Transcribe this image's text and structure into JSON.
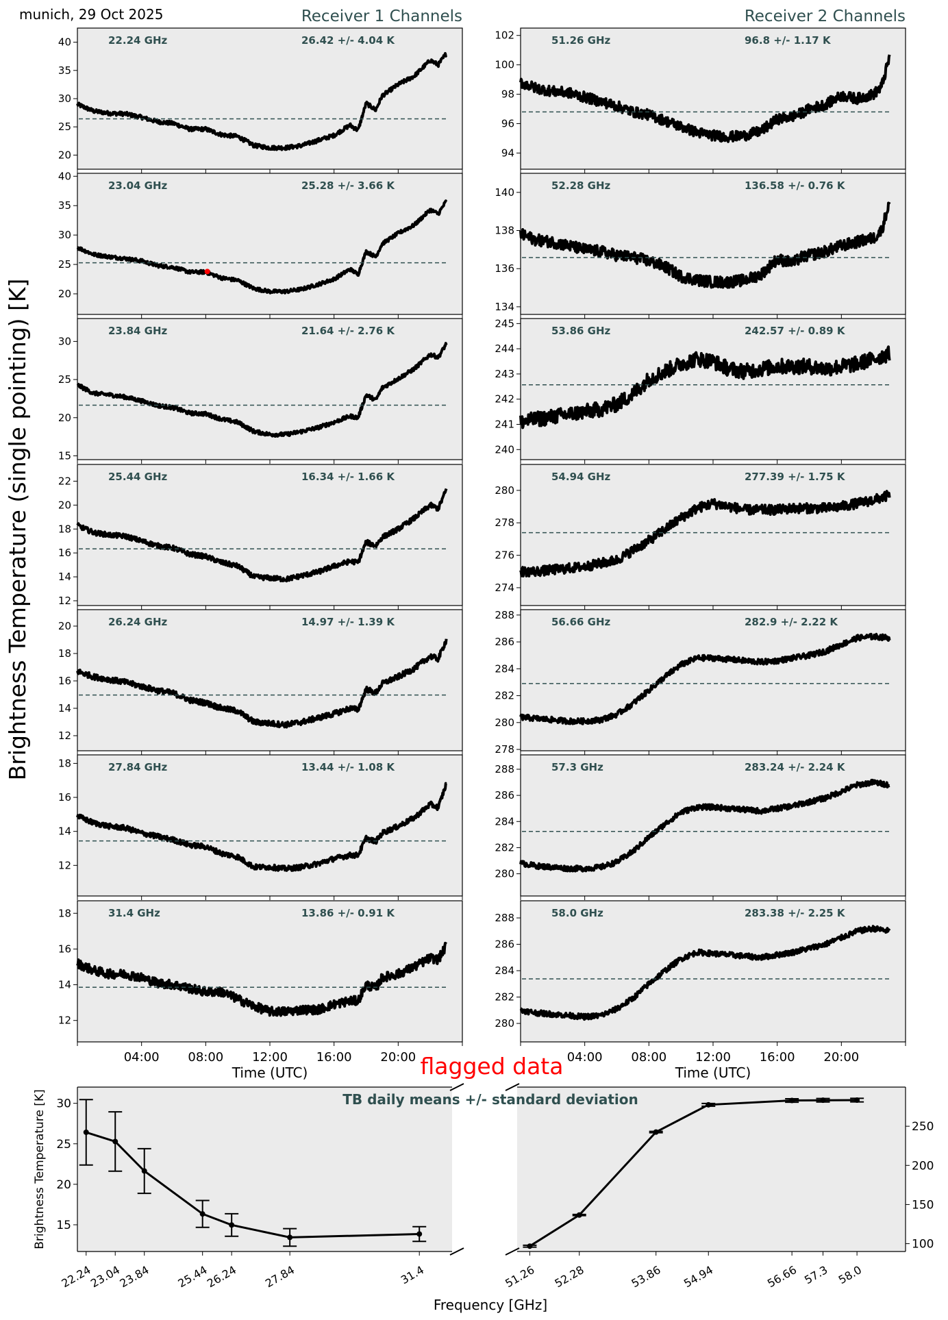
{
  "figure": {
    "location_date": "munich, 29 Oct 2025",
    "receiver1_title": "Receiver 1 Channels",
    "receiver2_title": "Receiver 2 Channels",
    "ylabel": "Brightness Temperature (single pointing) [K]",
    "time_xlabel": "Time (UTC)",
    "time_ticks": [
      "04:00",
      "08:00",
      "12:00",
      "16:00",
      "20:00"
    ],
    "flagged_label": "flagged data",
    "colors": {
      "axes_bg": "#ebebeb",
      "annotation": "#2f4f4f",
      "mean_line": "#2f4f4f",
      "data": "#000000",
      "flagged": "#ff0000"
    }
  },
  "chart_data": [
    {
      "type": "scatter",
      "receiver": 1,
      "channel_label": "22.24 GHz",
      "stats_label": "26.42 +/- 4.04 K",
      "mean": 26.42,
      "std": 4.04,
      "ylim": [
        17.5,
        42.5
      ],
      "yticks": [
        20,
        25,
        30,
        35,
        40
      ],
      "x_hours": [
        0,
        1,
        2,
        3,
        4,
        5,
        6,
        7,
        8,
        9,
        10,
        11,
        12,
        13,
        14,
        15,
        16,
        17,
        17.5,
        18,
        18.6,
        19,
        20,
        21,
        22,
        22.5,
        23
      ],
      "y": [
        29,
        27.8,
        27.4,
        27.3,
        26.7,
        25.9,
        25.6,
        24.6,
        24.6,
        23.6,
        23.3,
        21.7,
        21.3,
        21.3,
        21.7,
        22.6,
        23.5,
        25.3,
        24.4,
        29.2,
        28.0,
        30.5,
        32.5,
        34.0,
        36.8,
        36.0,
        38.0
      ],
      "noise": 0.35
    },
    {
      "type": "scatter",
      "receiver": 1,
      "channel_label": "23.04 GHz",
      "stats_label": "25.28 +/- 3.66 K",
      "mean": 25.28,
      "std": 3.66,
      "ylim": [
        16.5,
        40.5
      ],
      "yticks": [
        20,
        25,
        30,
        35,
        40
      ],
      "x_hours": [
        0,
        1,
        2,
        3,
        4,
        5,
        6,
        7,
        8,
        9,
        10,
        11,
        12,
        13,
        14,
        15,
        16,
        17,
        17.5,
        18,
        18.6,
        19,
        20,
        21,
        22,
        22.5,
        23
      ],
      "y": [
        27.9,
        26.7,
        26.3,
        26.0,
        25.6,
        24.8,
        24.5,
        23.7,
        23.7,
        22.7,
        22.3,
        20.9,
        20.4,
        20.4,
        20.8,
        21.6,
        22.5,
        24.2,
        23.3,
        27.2,
        26.3,
        28.5,
        30.3,
        31.7,
        34.3,
        33.6,
        35.8
      ],
      "noise": 0.3,
      "flagged_points": [
        {
          "x_hours": 8.1,
          "y": 23.8
        }
      ]
    },
    {
      "type": "scatter",
      "receiver": 1,
      "channel_label": "23.84 GHz",
      "stats_label": "21.64 +/- 2.76 K",
      "mean": 21.64,
      "std": 2.76,
      "ylim": [
        14.5,
        33.0
      ],
      "yticks": [
        15,
        20,
        25,
        30
      ],
      "x_hours": [
        0,
        1,
        2,
        3,
        4,
        5,
        6,
        7,
        8,
        9,
        10,
        11,
        12,
        13,
        14,
        15,
        16,
        17,
        17.5,
        18,
        18.6,
        19,
        20,
        21,
        22,
        22.5,
        23
      ],
      "y": [
        24.3,
        23.2,
        23.0,
        22.7,
        22.2,
        21.6,
        21.3,
        20.6,
        20.5,
        19.8,
        19.4,
        18.2,
        17.8,
        17.8,
        18.2,
        18.7,
        19.4,
        20.2,
        20.0,
        23.0,
        22.3,
        23.9,
        25.1,
        26.4,
        28.3,
        27.9,
        29.7
      ],
      "noise": 0.25
    },
    {
      "type": "scatter",
      "receiver": 1,
      "channel_label": "25.44 GHz",
      "stats_label": "16.34 +/- 1.66 K",
      "mean": 16.34,
      "std": 1.66,
      "ylim": [
        11.6,
        23.4
      ],
      "yticks": [
        12,
        14,
        16,
        18,
        20,
        22
      ],
      "x_hours": [
        0,
        1,
        2,
        3,
        4,
        5,
        6,
        7,
        8,
        9,
        10,
        11,
        12,
        13,
        14,
        15,
        16,
        17,
        17.5,
        18,
        18.6,
        19,
        20,
        21,
        22,
        22.5,
        23
      ],
      "y": [
        18.3,
        17.7,
        17.5,
        17.4,
        17.0,
        16.6,
        16.4,
        15.9,
        15.7,
        15.2,
        14.9,
        14.0,
        13.9,
        13.8,
        14.1,
        14.4,
        14.9,
        15.3,
        15.2,
        16.9,
        16.6,
        17.3,
        18.0,
        18.9,
        20.0,
        19.7,
        21.3
      ],
      "noise": 0.2
    },
    {
      "type": "scatter",
      "receiver": 1,
      "channel_label": "26.24 GHz",
      "stats_label": "14.97 +/- 1.39 K",
      "mean": 14.97,
      "std": 1.39,
      "ylim": [
        10.9,
        21.2
      ],
      "yticks": [
        12,
        14,
        16,
        18,
        20
      ],
      "x_hours": [
        0,
        1,
        2,
        3,
        4,
        5,
        6,
        7,
        8,
        9,
        10,
        11,
        12,
        13,
        14,
        15,
        16,
        17,
        17.5,
        18,
        18.6,
        19,
        20,
        21,
        22,
        22.5,
        23
      ],
      "y": [
        16.7,
        16.3,
        16.1,
        15.9,
        15.6,
        15.3,
        15.1,
        14.6,
        14.4,
        14.0,
        13.8,
        13.0,
        12.9,
        12.8,
        13.0,
        13.3,
        13.6,
        14.0,
        13.9,
        15.4,
        15.1,
        15.8,
        16.3,
        16.9,
        17.8,
        17.6,
        19.0
      ],
      "noise": 0.2
    },
    {
      "type": "scatter",
      "receiver": 1,
      "channel_label": "27.84 GHz",
      "stats_label": "13.44 +/- 1.08 K",
      "mean": 13.44,
      "std": 1.08,
      "ylim": [
        10.2,
        18.5
      ],
      "yticks": [
        12,
        14,
        16,
        18
      ],
      "x_hours": [
        0,
        1,
        2,
        3,
        4,
        5,
        6,
        7,
        8,
        9,
        10,
        11,
        12,
        13,
        14,
        15,
        16,
        17,
        17.5,
        18,
        18.6,
        19,
        20,
        21,
        22,
        22.5,
        23
      ],
      "y": [
        14.9,
        14.5,
        14.3,
        14.2,
        13.9,
        13.7,
        13.5,
        13.2,
        13.1,
        12.7,
        12.5,
        11.9,
        11.9,
        11.8,
        11.9,
        12.1,
        12.4,
        12.6,
        12.6,
        13.6,
        13.4,
        13.9,
        14.3,
        14.8,
        15.6,
        15.4,
        16.8
      ],
      "noise": 0.15
    },
    {
      "type": "scatter",
      "receiver": 1,
      "channel_label": "31.4 GHz",
      "stats_label": "13.86 +/- 0.91 K",
      "mean": 13.86,
      "std": 0.91,
      "ylim": [
        10.8,
        18.7
      ],
      "yticks": [
        12,
        14,
        16,
        18
      ],
      "x_hours": [
        0,
        1,
        2,
        3,
        4,
        5,
        6,
        7,
        8,
        9,
        10,
        11,
        12,
        13,
        14,
        15,
        16,
        17,
        17.5,
        18,
        18.6,
        19,
        20,
        21,
        22,
        22.5,
        23
      ],
      "y": [
        15.2,
        14.8,
        14.6,
        14.6,
        14.4,
        14.1,
        14.0,
        13.8,
        13.6,
        13.6,
        13.2,
        12.8,
        12.5,
        12.5,
        12.6,
        12.6,
        12.9,
        13.1,
        13.1,
        14.0,
        13.8,
        14.4,
        14.6,
        15.0,
        15.5,
        15.4,
        16.2
      ],
      "noise": 0.25
    },
    {
      "type": "scatter",
      "receiver": 2,
      "channel_label": "51.26 GHz",
      "stats_label": "96.8 +/- 1.17 K",
      "mean": 96.8,
      "std": 1.17,
      "ylim": [
        92.9,
        102.5
      ],
      "yticks": [
        94,
        96,
        98,
        100,
        102
      ],
      "x_hours": [
        0,
        1,
        2,
        3,
        4,
        5,
        6,
        7,
        8,
        9,
        10,
        11,
        12,
        13,
        14,
        15,
        16,
        17,
        17.5,
        18,
        19,
        20,
        21,
        22,
        22.5,
        23
      ],
      "y": [
        98.8,
        98.4,
        98.2,
        98.1,
        97.8,
        97.5,
        97.2,
        96.8,
        96.6,
        96.2,
        95.8,
        95.4,
        95.2,
        95.1,
        95.2,
        95.5,
        96.3,
        96.5,
        96.7,
        97.0,
        97.3,
        97.9,
        97.7,
        98.0,
        98.5,
        100.5
      ],
      "noise": 0.35
    },
    {
      "type": "scatter",
      "receiver": 2,
      "channel_label": "52.28 GHz",
      "stats_label": "136.58 +/- 0.76 K",
      "mean": 136.58,
      "std": 0.76,
      "ylim": [
        133.6,
        141.0
      ],
      "yticks": [
        134,
        136,
        138,
        140
      ],
      "x_hours": [
        0,
        1,
        2,
        3,
        4,
        5,
        6,
        7,
        8,
        9,
        10,
        11,
        12,
        13,
        14,
        15,
        16,
        17,
        17.5,
        18,
        19,
        20,
        21,
        22,
        22.5,
        23
      ],
      "y": [
        137.8,
        137.5,
        137.4,
        137.2,
        137.0,
        136.9,
        136.7,
        136.6,
        136.4,
        136.1,
        135.6,
        135.4,
        135.3,
        135.3,
        135.4,
        135.7,
        136.5,
        136.3,
        136.6,
        136.7,
        136.9,
        137.2,
        137.4,
        137.6,
        138.0,
        139.5
      ],
      "noise": 0.3
    },
    {
      "type": "scatter",
      "receiver": 2,
      "channel_label": "53.86 GHz",
      "stats_label": "242.57 +/- 0.89 K",
      "mean": 242.57,
      "std": 0.89,
      "ylim": [
        239.6,
        245.2
      ],
      "yticks": [
        240,
        241,
        242,
        243,
        244,
        245
      ],
      "x_hours": [
        0,
        1,
        2,
        3,
        4,
        5,
        6,
        7,
        8,
        9,
        10,
        11,
        12,
        13,
        14,
        15,
        16,
        17,
        18,
        19,
        20,
        21,
        22,
        23
      ],
      "y": [
        241.1,
        241.2,
        241.3,
        241.4,
        241.5,
        241.6,
        241.8,
        242.2,
        242.8,
        243.1,
        243.4,
        243.6,
        243.5,
        243.2,
        243.1,
        243.2,
        243.3,
        243.3,
        243.3,
        243.2,
        243.3,
        243.4,
        243.6,
        243.8
      ],
      "noise": 0.3
    },
    {
      "type": "scatter",
      "receiver": 2,
      "channel_label": "54.94 GHz",
      "stats_label": "277.39 +/- 1.75 K",
      "mean": 277.39,
      "std": 1.75,
      "ylim": [
        272.9,
        281.6
      ],
      "yticks": [
        274,
        276,
        278,
        280
      ],
      "x_hours": [
        0,
        1,
        2,
        3,
        4,
        5,
        6,
        7,
        8,
        9,
        10,
        11,
        12,
        13,
        14,
        15,
        16,
        17,
        18,
        19,
        20,
        21,
        22,
        23
      ],
      "y": [
        275.0,
        275.0,
        275.1,
        275.2,
        275.3,
        275.5,
        275.7,
        276.3,
        276.9,
        277.6,
        278.3,
        278.9,
        279.2,
        279.0,
        278.8,
        278.8,
        278.8,
        278.9,
        278.9,
        278.9,
        279.0,
        279.2,
        279.4,
        279.7
      ],
      "noise": 0.3
    },
    {
      "type": "scatter",
      "receiver": 2,
      "channel_label": "56.66 GHz",
      "stats_label": "282.9 +/- 2.22 K",
      "mean": 282.9,
      "std": 2.22,
      "ylim": [
        277.9,
        288.4
      ],
      "yticks": [
        278,
        280,
        282,
        284,
        286,
        288
      ],
      "x_hours": [
        0,
        1,
        2,
        3,
        4,
        5,
        6,
        7,
        8,
        9,
        10,
        11,
        12,
        13,
        14,
        15,
        16,
        17,
        18,
        19,
        20,
        21,
        22,
        23
      ],
      "y": [
        280.4,
        280.3,
        280.2,
        280.1,
        280.1,
        280.2,
        280.6,
        281.4,
        282.4,
        283.4,
        284.3,
        284.8,
        284.8,
        284.7,
        284.6,
        284.5,
        284.6,
        284.8,
        285.0,
        285.3,
        285.8,
        286.3,
        286.4,
        286.3
      ],
      "noise": 0.2
    },
    {
      "type": "scatter",
      "receiver": 2,
      "channel_label": "57.3 GHz",
      "stats_label": "283.24 +/- 2.24 K",
      "mean": 283.24,
      "std": 2.24,
      "ylim": [
        278.3,
        289.1
      ],
      "yticks": [
        280,
        282,
        284,
        286,
        288
      ],
      "x_hours": [
        0,
        1,
        2,
        3,
        4,
        5,
        6,
        7,
        8,
        9,
        10,
        11,
        12,
        13,
        14,
        15,
        16,
        17,
        18,
        19,
        20,
        21,
        22,
        23
      ],
      "y": [
        280.8,
        280.6,
        280.5,
        280.4,
        280.4,
        280.5,
        280.9,
        281.7,
        282.8,
        283.8,
        284.7,
        285.1,
        285.1,
        285.0,
        284.9,
        284.8,
        285.0,
        285.2,
        285.5,
        285.8,
        286.3,
        286.8,
        287.0,
        286.8
      ],
      "noise": 0.2
    },
    {
      "type": "scatter",
      "receiver": 2,
      "channel_label": "58.0 GHz",
      "stats_label": "283.38 +/- 2.25 K",
      "mean": 283.38,
      "std": 2.25,
      "ylim": [
        278.6,
        289.3
      ],
      "yticks": [
        280,
        282,
        284,
        286,
        288
      ],
      "x_hours": [
        0,
        1,
        2,
        3,
        4,
        5,
        6,
        7,
        8,
        9,
        10,
        11,
        12,
        13,
        14,
        15,
        16,
        17,
        18,
        19,
        20,
        21,
        22,
        23
      ],
      "y": [
        281.0,
        280.8,
        280.7,
        280.6,
        280.5,
        280.6,
        281.1,
        281.9,
        283.0,
        284.0,
        284.9,
        285.4,
        285.3,
        285.2,
        285.1,
        285.0,
        285.2,
        285.4,
        285.7,
        286.0,
        286.5,
        287.0,
        287.2,
        287.0
      ],
      "noise": 0.2
    },
    {
      "type": "line",
      "title": "TB daily means +/- standard deviation",
      "xlabel": "Frequency [GHz]",
      "ylabel": "Brightness Temperature [K]",
      "broken_x_axis": true,
      "left": {
        "x": [
          22.24,
          23.04,
          23.84,
          25.44,
          26.24,
          27.84,
          31.4
        ],
        "tick_labels": [
          "22.24",
          "23.04",
          "23.84",
          "25.44",
          "26.24",
          "27.84",
          "31.4"
        ],
        "y": [
          26.42,
          25.28,
          21.64,
          16.34,
          14.97,
          13.44,
          13.86
        ],
        "err": [
          4.04,
          3.66,
          2.76,
          1.66,
          1.39,
          1.08,
          0.91
        ],
        "xlim": [
          22.0,
          32.3
        ],
        "ylim": [
          11.7,
          32.0
        ],
        "yticks": [
          15,
          20,
          25,
          30
        ]
      },
      "right": {
        "x": [
          51.26,
          52.28,
          53.86,
          54.94,
          56.66,
          57.3,
          58.0
        ],
        "tick_labels": [
          "51.26",
          "52.28",
          "53.86",
          "54.94",
          "56.66",
          "57.3",
          "58.0"
        ],
        "y": [
          96.8,
          136.58,
          242.57,
          277.39,
          282.9,
          283.24,
          283.38
        ],
        "err": [
          1.17,
          0.76,
          0.89,
          1.75,
          2.22,
          2.24,
          2.25
        ],
        "xlim": [
          51.0,
          59.0
        ],
        "ylim": [
          90.0,
          300.0
        ],
        "yticks": [
          100,
          150,
          200,
          250
        ]
      }
    }
  ]
}
